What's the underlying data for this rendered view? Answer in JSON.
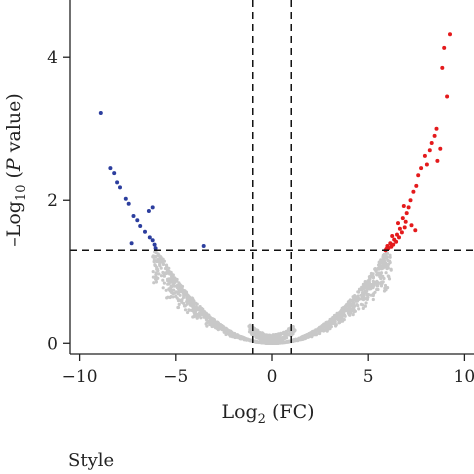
{
  "chart_data": {
    "type": "scatter",
    "title": "",
    "xlabel": {
      "base": "Log",
      "sub": "2",
      "rest": " (FC)"
    },
    "ylabel": {
      "pre": "–Log",
      "sub": "10",
      "open": " (",
      "ital": "P",
      "close": " value)"
    },
    "xlim": [
      -10.5,
      10.5
    ],
    "ylim": [
      -0.15,
      4.8
    ],
    "xticks": [
      -10,
      -5,
      0,
      5,
      10
    ],
    "xtick_labels": [
      "−10",
      "−5",
      "0",
      "5",
      "10"
    ],
    "yticks": [
      0,
      2,
      4
    ],
    "ytick_labels": [
      "0",
      "2",
      "4"
    ],
    "thresholds": {
      "x": [
        -1,
        1
      ],
      "y": 1.3
    },
    "colors": {
      "down": "#2c3e9e",
      "up": "#e41a1c",
      "ns": "#c8c8c8",
      "axis": "#222222"
    },
    "series": [
      {
        "values": [
          [
            -8.9,
            3.22
          ],
          [
            -8.4,
            2.45
          ],
          [
            -8.2,
            2.38
          ],
          [
            -8.05,
            2.25
          ],
          [
            -7.9,
            2.18
          ],
          [
            -7.6,
            2.02
          ],
          [
            -7.45,
            1.95
          ],
          [
            -7.2,
            1.78
          ],
          [
            -7.0,
            1.72
          ],
          [
            -6.85,
            1.64
          ],
          [
            -6.6,
            1.56
          ],
          [
            -6.35,
            1.48
          ],
          [
            -6.2,
            1.44
          ],
          [
            -6.1,
            1.38
          ],
          [
            -6.05,
            1.33
          ],
          [
            -6.4,
            1.85
          ],
          [
            -6.2,
            1.9
          ],
          [
            -7.3,
            1.4
          ],
          [
            -3.55,
            1.36
          ]
        ]
      },
      {
        "values": [
          [
            9.25,
            4.32
          ],
          [
            8.95,
            4.13
          ],
          [
            9.1,
            3.45
          ],
          [
            8.85,
            3.85
          ],
          [
            8.55,
            3.0
          ],
          [
            8.75,
            2.72
          ],
          [
            8.6,
            2.55
          ],
          [
            8.3,
            2.8
          ],
          [
            8.2,
            2.7
          ],
          [
            8.05,
            2.5
          ],
          [
            7.95,
            2.62
          ],
          [
            7.75,
            2.45
          ],
          [
            7.6,
            2.35
          ],
          [
            7.5,
            2.2
          ],
          [
            7.35,
            2.12
          ],
          [
            7.2,
            2.0
          ],
          [
            7.1,
            1.9
          ],
          [
            7.0,
            1.82
          ],
          [
            6.95,
            1.7
          ],
          [
            6.9,
            1.62
          ],
          [
            6.8,
            1.75
          ],
          [
            6.75,
            1.55
          ],
          [
            6.65,
            1.6
          ],
          [
            6.6,
            1.48
          ],
          [
            6.5,
            1.52
          ],
          [
            6.45,
            1.42
          ],
          [
            6.35,
            1.45
          ],
          [
            6.3,
            1.38
          ],
          [
            6.2,
            1.35
          ],
          [
            6.15,
            1.4
          ],
          [
            6.05,
            1.33
          ],
          [
            6.0,
            1.36
          ],
          [
            5.95,
            1.32
          ],
          [
            5.9,
            1.3
          ],
          [
            6.55,
            1.68
          ],
          [
            6.85,
            1.92
          ],
          [
            7.25,
            1.65
          ],
          [
            7.45,
            1.58
          ],
          [
            8.45,
            2.9
          ],
          [
            6.25,
            1.5
          ]
        ]
      },
      {
        "values": "generated"
      }
    ]
  },
  "footer": {
    "label": "Style"
  }
}
